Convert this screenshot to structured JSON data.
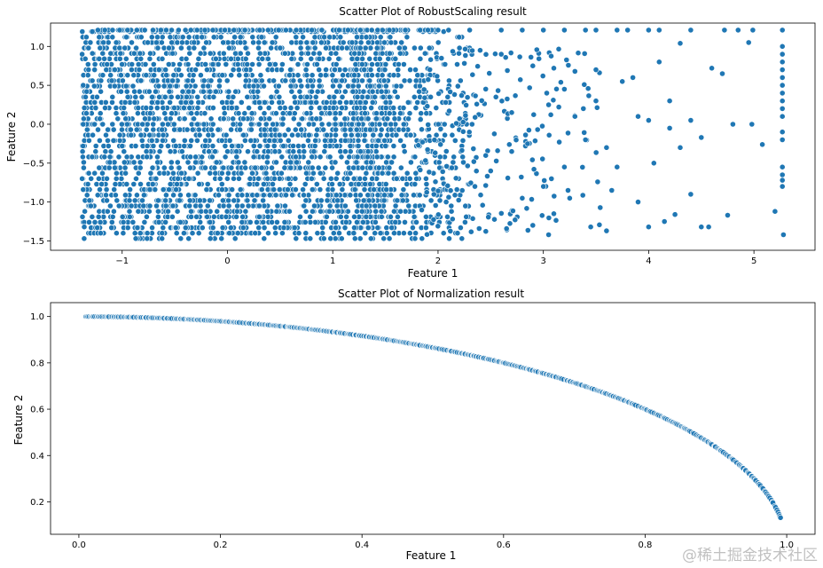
{
  "chart_data": [
    {
      "type": "scatter",
      "title": "Scatter Plot of RobustScaling result",
      "xlabel": "Feature 1",
      "ylabel": "Feature 2",
      "xlim": [
        -1.68,
        5.58
      ],
      "ylim": [
        -1.62,
        1.3
      ],
      "xticks": [
        -1,
        0,
        1,
        2,
        3,
        4,
        5
      ],
      "xtick_labels": [
        "−1",
        "0",
        "1",
        "2",
        "3",
        "4",
        "5"
      ],
      "yticks": [
        -1.5,
        -1.0,
        -0.5,
        0.0,
        0.5,
        1.0
      ],
      "ytick_labels": [
        "−1.5",
        "−1.0",
        "−0.5",
        "0.0",
        "0.5",
        "1.0"
      ],
      "point_color": "#1f77b4",
      "edge_color": "#ffffff",
      "dense_region": {
        "x_range": [
          -1.38,
          2.3
        ],
        "y_range": [
          -1.47,
          1.21
        ],
        "note": "thousands of overlapping points"
      },
      "points": [
        [
          -1.38,
          0.9
        ],
        [
          -1.37,
          0.5
        ],
        [
          -1.38,
          -0.7
        ],
        [
          -1.36,
          -1.32
        ],
        [
          -1.37,
          0.0
        ],
        [
          2.0,
          1.21
        ],
        [
          2.1,
          1.21
        ],
        [
          2.3,
          1.21
        ],
        [
          2.6,
          1.21
        ],
        [
          2.8,
          1.21
        ],
        [
          3.0,
          1.21
        ],
        [
          3.2,
          1.21
        ],
        [
          3.4,
          1.21
        ],
        [
          3.5,
          1.21
        ],
        [
          3.7,
          1.21
        ],
        [
          3.8,
          1.21
        ],
        [
          4.0,
          1.21
        ],
        [
          4.1,
          1.21
        ],
        [
          4.4,
          1.21
        ],
        [
          4.72,
          1.21
        ],
        [
          4.85,
          1.21
        ],
        [
          4.99,
          1.21
        ],
        [
          5.27,
          1.21
        ],
        [
          2.4,
          0.95
        ],
        [
          2.6,
          0.9
        ],
        [
          2.9,
          0.75
        ],
        [
          3.1,
          0.72
        ],
        [
          3.3,
          0.68
        ],
        [
          3.5,
          0.7
        ],
        [
          3.75,
          0.55
        ],
        [
          4.1,
          0.8
        ],
        [
          4.3,
          1.04
        ],
        [
          4.6,
          0.72
        ],
        [
          4.95,
          1.05
        ],
        [
          3.9,
          0.1
        ],
        [
          4.0,
          0.05
        ],
        [
          4.2,
          -0.05
        ],
        [
          4.4,
          0.05
        ],
        [
          4.8,
          0.0
        ],
        [
          4.98,
          0.0
        ],
        [
          5.08,
          -0.26
        ],
        [
          4.5,
          -0.17
        ],
        [
          4.3,
          -0.3
        ],
        [
          3.6,
          -0.3
        ],
        [
          3.7,
          -0.55
        ],
        [
          4.05,
          -0.5
        ],
        [
          3.4,
          -0.2
        ],
        [
          3.2,
          -0.55
        ],
        [
          3.0,
          -0.8
        ],
        [
          3.1,
          -1.15
        ],
        [
          3.05,
          -1.42
        ],
        [
          3.45,
          -1.32
        ],
        [
          3.6,
          -1.37
        ],
        [
          3.25,
          -0.95
        ],
        [
          3.9,
          -1.0
        ],
        [
          4.0,
          -1.32
        ],
        [
          4.15,
          -1.25
        ],
        [
          4.25,
          -1.16
        ],
        [
          4.5,
          -1.32
        ],
        [
          4.57,
          -1.32
        ],
        [
          4.75,
          -1.17
        ],
        [
          5.2,
          -1.12
        ],
        [
          5.28,
          -1.42
        ],
        [
          3.5,
          0.3
        ],
        [
          3.3,
          0.1
        ],
        [
          2.7,
          -0.35
        ],
        [
          2.85,
          -0.25
        ],
        [
          3.05,
          0.25
        ],
        [
          3.2,
          0.45
        ],
        [
          3.38,
          0.2
        ],
        [
          2.55,
          0.35
        ],
        [
          2.7,
          0.15
        ],
        [
          2.5,
          -0.6
        ],
        [
          2.35,
          -0.8
        ],
        [
          2.8,
          -0.95
        ],
        [
          2.9,
          -1.3
        ],
        [
          4.4,
          -0.9
        ],
        [
          4.7,
          0.65
        ],
        [
          3.85,
          0.6
        ],
        [
          4.2,
          0.3
        ],
        [
          3.65,
          -0.85
        ]
      ],
      "column_points": {
        "x": 5.27,
        "y": [
          1.0,
          0.9,
          0.8,
          0.7,
          0.6,
          0.5,
          0.4,
          0.3,
          0.2,
          0.1,
          -0.1,
          -0.2,
          -0.55,
          -0.65,
          -0.72,
          -0.8
        ]
      }
    },
    {
      "type": "scatter",
      "title": "Scatter Plot of Normalization result",
      "xlabel": "Feature 1",
      "ylabel": "Feature 2",
      "xlim": [
        -0.04,
        1.04
      ],
      "ylim": [
        0.06,
        1.06
      ],
      "xticks": [
        0.0,
        0.2,
        0.4,
        0.6,
        0.8,
        1.0
      ],
      "xtick_labels": [
        "0.0",
        "0.2",
        "0.4",
        "0.6",
        "0.8",
        "1.0"
      ],
      "yticks": [
        0.2,
        0.4,
        0.6,
        0.8,
        1.0
      ],
      "ytick_labels": [
        "0.2",
        "0.4",
        "0.6",
        "0.8",
        "1.0"
      ],
      "point_color": "#1f77b4",
      "edge_color": "#ffffff",
      "curve": "unit circle quarter arc: y = sqrt(1 - x^2)",
      "x_range": [
        0.01,
        0.992
      ]
    }
  ],
  "watermark": "@稀土掘金技术社区"
}
